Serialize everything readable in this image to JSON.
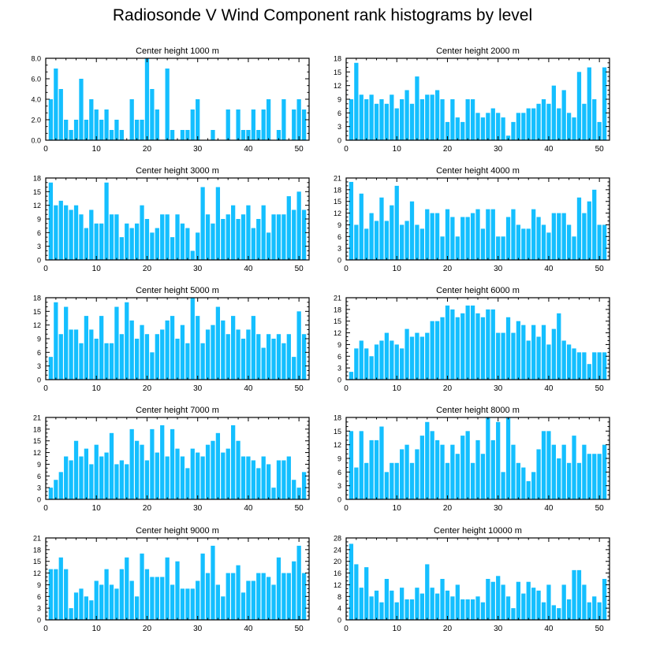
{
  "figure": {
    "title": "Radiosonde V Wind Component rank histograms by level"
  },
  "colors": {
    "bar": "#14bfff",
    "axis": "#000000"
  },
  "chart_data": [
    {
      "type": "bar",
      "title": "Center height 1000 m",
      "xlim": [
        0,
        52
      ],
      "ylim": [
        0,
        8
      ],
      "xticks": [
        0,
        10,
        20,
        30,
        40,
        50
      ],
      "yticks": [
        0,
        2,
        4,
        6,
        8
      ],
      "ytick_labels": [
        "0.0",
        "2.0",
        "4.0",
        "6.0",
        "8.0"
      ],
      "x": [
        1,
        2,
        3,
        4,
        5,
        6,
        7,
        8,
        9,
        10,
        11,
        12,
        13,
        14,
        15,
        16,
        17,
        18,
        19,
        20,
        21,
        22,
        23,
        24,
        25,
        26,
        27,
        28,
        29,
        30,
        31,
        32,
        33,
        34,
        35,
        36,
        37,
        38,
        39,
        40,
        41,
        42,
        43,
        44,
        45,
        46,
        47,
        48,
        49,
        50,
        51
      ],
      "values": [
        4,
        7,
        5,
        2,
        1,
        2,
        6,
        2,
        4,
        3,
        2,
        3,
        1,
        2,
        1,
        0,
        4,
        2,
        2,
        8,
        5,
        3,
        0,
        7,
        1,
        0,
        1,
        1,
        3,
        4,
        0,
        0,
        1,
        0,
        0,
        3,
        0,
        3,
        1,
        1,
        3,
        1,
        3,
        4,
        0,
        1,
        4,
        0,
        3,
        4,
        3
      ]
    },
    {
      "type": "bar",
      "title": "Center height 2000 m",
      "xlim": [
        0,
        52
      ],
      "ylim": [
        0,
        18
      ],
      "xticks": [
        0,
        10,
        20,
        30,
        40,
        50
      ],
      "yticks": [
        0,
        3,
        6,
        9,
        12,
        15,
        18
      ],
      "ytick_labels": [
        "0",
        "3",
        "6",
        "9",
        "12",
        "15",
        "18"
      ],
      "x": [
        1,
        2,
        3,
        4,
        5,
        6,
        7,
        8,
        9,
        10,
        11,
        12,
        13,
        14,
        15,
        16,
        17,
        18,
        19,
        20,
        21,
        22,
        23,
        24,
        25,
        26,
        27,
        28,
        29,
        30,
        31,
        32,
        33,
        34,
        35,
        36,
        37,
        38,
        39,
        40,
        41,
        42,
        43,
        44,
        45,
        46,
        47,
        48,
        49,
        50,
        51
      ],
      "values": [
        9,
        17,
        10,
        9,
        10,
        8,
        9,
        8,
        10,
        7,
        9,
        11,
        8,
        14,
        9,
        10,
        10,
        11,
        9,
        4,
        9,
        5,
        4,
        9,
        9,
        6,
        5,
        6,
        7,
        6,
        5,
        1,
        4,
        6,
        6,
        7,
        7,
        8,
        9,
        8,
        12,
        7,
        11,
        6,
        5,
        15,
        8,
        16,
        9,
        4,
        16
      ]
    },
    {
      "type": "bar",
      "title": "Center height 3000 m",
      "xlim": [
        0,
        52
      ],
      "ylim": [
        0,
        18
      ],
      "xticks": [
        0,
        10,
        20,
        30,
        40,
        50
      ],
      "yticks": [
        0,
        3,
        6,
        9,
        12,
        15,
        18
      ],
      "ytick_labels": [
        "0",
        "3",
        "6",
        "9",
        "12",
        "15",
        "18"
      ],
      "x": [
        1,
        2,
        3,
        4,
        5,
        6,
        7,
        8,
        9,
        10,
        11,
        12,
        13,
        14,
        15,
        16,
        17,
        18,
        19,
        20,
        21,
        22,
        23,
        24,
        25,
        26,
        27,
        28,
        29,
        30,
        31,
        32,
        33,
        34,
        35,
        36,
        37,
        38,
        39,
        40,
        41,
        42,
        43,
        44,
        45,
        46,
        47,
        48,
        49,
        50,
        51
      ],
      "values": [
        17,
        12,
        13,
        12,
        11,
        12,
        10,
        7,
        11,
        8,
        8,
        17,
        10,
        10,
        5,
        8,
        7,
        8,
        12,
        9,
        6,
        7,
        10,
        10,
        5,
        10,
        8,
        7,
        2,
        6,
        16,
        10,
        8,
        16,
        9,
        10,
        12,
        9,
        10,
        12,
        7,
        9,
        12,
        6,
        10,
        10,
        10,
        14,
        11,
        15,
        11
      ]
    },
    {
      "type": "bar",
      "title": "Center height 4000 m",
      "xlim": [
        0,
        52
      ],
      "ylim": [
        0,
        21
      ],
      "xticks": [
        0,
        10,
        20,
        30,
        40,
        50
      ],
      "yticks": [
        0,
        3,
        6,
        9,
        12,
        15,
        18,
        21
      ],
      "ytick_labels": [
        "0",
        "3",
        "6",
        "9",
        "12",
        "15",
        "18",
        "21"
      ],
      "x": [
        1,
        2,
        3,
        4,
        5,
        6,
        7,
        8,
        9,
        10,
        11,
        12,
        13,
        14,
        15,
        16,
        17,
        18,
        19,
        20,
        21,
        22,
        23,
        24,
        25,
        26,
        27,
        28,
        29,
        30,
        31,
        32,
        33,
        34,
        35,
        36,
        37,
        38,
        39,
        40,
        41,
        42,
        43,
        44,
        45,
        46,
        47,
        48,
        49,
        50,
        51
      ],
      "values": [
        20,
        9,
        17,
        8,
        12,
        10,
        16,
        10,
        14,
        19,
        9,
        10,
        15,
        9,
        8,
        13,
        12,
        12,
        6,
        13,
        11,
        6,
        11,
        11,
        12,
        13,
        8,
        13,
        13,
        6,
        6,
        11,
        13,
        9,
        8,
        8,
        13,
        11,
        9,
        7,
        12,
        12,
        12,
        9,
        6,
        16,
        12,
        15,
        18,
        9,
        9
      ]
    },
    {
      "type": "bar",
      "title": "Center height 5000 m",
      "xlim": [
        0,
        52
      ],
      "ylim": [
        0,
        18
      ],
      "xticks": [
        0,
        10,
        20,
        30,
        40,
        50
      ],
      "yticks": [
        0,
        3,
        6,
        9,
        12,
        15,
        18
      ],
      "ytick_labels": [
        "0",
        "3",
        "6",
        "9",
        "12",
        "15",
        "18"
      ],
      "x": [
        1,
        2,
        3,
        4,
        5,
        6,
        7,
        8,
        9,
        10,
        11,
        12,
        13,
        14,
        15,
        16,
        17,
        18,
        19,
        20,
        21,
        22,
        23,
        24,
        25,
        26,
        27,
        28,
        29,
        30,
        31,
        32,
        33,
        34,
        35,
        36,
        37,
        38,
        39,
        40,
        41,
        42,
        43,
        44,
        45,
        46,
        47,
        48,
        49,
        50,
        51
      ],
      "values": [
        5,
        17,
        10,
        16,
        11,
        11,
        8,
        14,
        11,
        9,
        14,
        8,
        8,
        16,
        10,
        17,
        13,
        9,
        12,
        10,
        6,
        10,
        11,
        13,
        14,
        9,
        12,
        8,
        18,
        14,
        8,
        11,
        12,
        16,
        13,
        10,
        14,
        11,
        9,
        11,
        14,
        10,
        7,
        10,
        9,
        10,
        8,
        10,
        5,
        15,
        10
      ]
    },
    {
      "type": "bar",
      "title": "Center height 6000 m",
      "xlim": [
        0,
        52
      ],
      "ylim": [
        0,
        21
      ],
      "xticks": [
        0,
        10,
        20,
        30,
        40,
        50
      ],
      "yticks": [
        0,
        3,
        6,
        9,
        12,
        15,
        18,
        21
      ],
      "ytick_labels": [
        "0",
        "3",
        "6",
        "9",
        "12",
        "15",
        "18",
        "21"
      ],
      "x": [
        1,
        2,
        3,
        4,
        5,
        6,
        7,
        8,
        9,
        10,
        11,
        12,
        13,
        14,
        15,
        16,
        17,
        18,
        19,
        20,
        21,
        22,
        23,
        24,
        25,
        26,
        27,
        28,
        29,
        30,
        31,
        32,
        33,
        34,
        35,
        36,
        37,
        38,
        39,
        40,
        41,
        42,
        43,
        44,
        45,
        46,
        47,
        48,
        49,
        50,
        51
      ],
      "values": [
        2,
        8,
        10,
        8,
        6,
        9,
        10,
        12,
        10,
        9,
        8,
        13,
        11,
        12,
        11,
        12,
        15,
        15,
        16,
        19,
        18,
        16,
        17,
        19,
        19,
        17,
        16,
        18,
        18,
        12,
        12,
        16,
        12,
        15,
        14,
        10,
        14,
        11,
        14,
        9,
        13,
        17,
        10,
        9,
        8,
        7,
        7,
        4,
        7,
        7,
        7
      ]
    },
    {
      "type": "bar",
      "title": "Center height 7000 m",
      "xlim": [
        0,
        52
      ],
      "ylim": [
        0,
        21
      ],
      "xticks": [
        0,
        10,
        20,
        30,
        40,
        50
      ],
      "yticks": [
        0,
        3,
        6,
        9,
        12,
        15,
        18,
        21
      ],
      "ytick_labels": [
        "0",
        "3",
        "6",
        "9",
        "12",
        "15",
        "18",
        "21"
      ],
      "x": [
        1,
        2,
        3,
        4,
        5,
        6,
        7,
        8,
        9,
        10,
        11,
        12,
        13,
        14,
        15,
        16,
        17,
        18,
        19,
        20,
        21,
        22,
        23,
        24,
        25,
        26,
        27,
        28,
        29,
        30,
        31,
        32,
        33,
        34,
        35,
        36,
        37,
        38,
        39,
        40,
        41,
        42,
        43,
        44,
        45,
        46,
        47,
        48,
        49,
        50,
        51
      ],
      "values": [
        3,
        5,
        7,
        11,
        10,
        15,
        11,
        13,
        9,
        14,
        11,
        12,
        17,
        9,
        10,
        9,
        18,
        15,
        14,
        10,
        18,
        12,
        19,
        11,
        18,
        13,
        11,
        8,
        13,
        12,
        11,
        14,
        15,
        17,
        12,
        13,
        19,
        15,
        11,
        11,
        10,
        8,
        11,
        9,
        3,
        10,
        10,
        11,
        5,
        3,
        7
      ]
    },
    {
      "type": "bar",
      "title": "Center height 8000 m",
      "xlim": [
        0,
        52
      ],
      "ylim": [
        0,
        18
      ],
      "xticks": [
        0,
        10,
        20,
        30,
        40,
        50
      ],
      "yticks": [
        0,
        3,
        6,
        9,
        12,
        15,
        18
      ],
      "ytick_labels": [
        "0",
        "3",
        "6",
        "9",
        "12",
        "15",
        "18"
      ],
      "x": [
        1,
        2,
        3,
        4,
        5,
        6,
        7,
        8,
        9,
        10,
        11,
        12,
        13,
        14,
        15,
        16,
        17,
        18,
        19,
        20,
        21,
        22,
        23,
        24,
        25,
        26,
        27,
        28,
        29,
        30,
        31,
        32,
        33,
        34,
        35,
        36,
        37,
        38,
        39,
        40,
        41,
        42,
        43,
        44,
        45,
        46,
        47,
        48,
        49,
        50,
        51
      ],
      "values": [
        15,
        7,
        15,
        8,
        13,
        13,
        16,
        6,
        8,
        8,
        11,
        12,
        8,
        11,
        14,
        17,
        15,
        13,
        12,
        8,
        12,
        10,
        14,
        15,
        8,
        13,
        10,
        18,
        13,
        17,
        6,
        18,
        12,
        8,
        7,
        4,
        6,
        11,
        15,
        15,
        12,
        9,
        12,
        8,
        14,
        8,
        12,
        10,
        10,
        10,
        12
      ]
    },
    {
      "type": "bar",
      "title": "Center height 9000 m",
      "xlim": [
        0,
        52
      ],
      "ylim": [
        0,
        21
      ],
      "xticks": [
        0,
        10,
        20,
        30,
        40,
        50
      ],
      "yticks": [
        0,
        3,
        6,
        9,
        12,
        15,
        18,
        21
      ],
      "ytick_labels": [
        "0",
        "3",
        "6",
        "9",
        "12",
        "15",
        "18",
        "21"
      ],
      "x": [
        1,
        2,
        3,
        4,
        5,
        6,
        7,
        8,
        9,
        10,
        11,
        12,
        13,
        14,
        15,
        16,
        17,
        18,
        19,
        20,
        21,
        22,
        23,
        24,
        25,
        26,
        27,
        28,
        29,
        30,
        31,
        32,
        33,
        34,
        35,
        36,
        37,
        38,
        39,
        40,
        41,
        42,
        43,
        44,
        45,
        46,
        47,
        48,
        49,
        50,
        51
      ],
      "values": [
        13,
        13,
        16,
        13,
        3,
        7,
        8,
        6,
        5,
        10,
        9,
        13,
        9,
        8,
        13,
        16,
        10,
        6,
        17,
        13,
        11,
        11,
        11,
        16,
        9,
        15,
        8,
        8,
        8,
        10,
        17,
        12,
        19,
        9,
        6,
        12,
        12,
        14,
        7,
        10,
        10,
        12,
        12,
        11,
        9,
        16,
        12,
        12,
        15,
        19,
        12
      ]
    },
    {
      "type": "bar",
      "title": "Center height 10000 m",
      "xlim": [
        0,
        52
      ],
      "ylim": [
        0,
        28
      ],
      "xticks": [
        0,
        10,
        20,
        30,
        40,
        50
      ],
      "yticks": [
        0,
        4,
        8,
        12,
        16,
        20,
        24,
        28
      ],
      "ytick_labels": [
        "0",
        "4",
        "8",
        "12",
        "16",
        "20",
        "24",
        "28"
      ],
      "x": [
        1,
        2,
        3,
        4,
        5,
        6,
        7,
        8,
        9,
        10,
        11,
        12,
        13,
        14,
        15,
        16,
        17,
        18,
        19,
        20,
        21,
        22,
        23,
        24,
        25,
        26,
        27,
        28,
        29,
        30,
        31,
        32,
        33,
        34,
        35,
        36,
        37,
        38,
        39,
        40,
        41,
        42,
        43,
        44,
        45,
        46,
        47,
        48,
        49,
        50,
        51
      ],
      "values": [
        26,
        19,
        11,
        18,
        8,
        10,
        6,
        14,
        10,
        6,
        11,
        7,
        7,
        11,
        9,
        19,
        11,
        9,
        14,
        10,
        8,
        12,
        7,
        7,
        7,
        8,
        6,
        14,
        13,
        15,
        12,
        8,
        4,
        13,
        9,
        13,
        11,
        10,
        6,
        12,
        5,
        4,
        12,
        7,
        17,
        17,
        12,
        6,
        8,
        6,
        14
      ]
    }
  ]
}
